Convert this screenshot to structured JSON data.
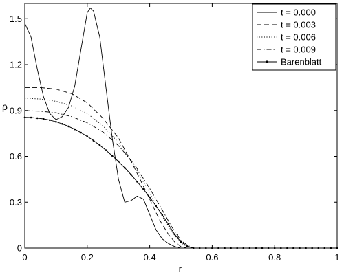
{
  "chart_data": {
    "type": "line",
    "xlabel": "r",
    "ylabel": "ρ",
    "xlim": [
      0,
      1
    ],
    "ylim": [
      0,
      1.6
    ],
    "x_ticks": [
      "0",
      "0.2",
      "0.4",
      "0.6",
      "0.8",
      "1"
    ],
    "y_ticks": [
      "0",
      "0.3",
      "0.6",
      "0.9",
      "1.2",
      "1.5"
    ],
    "grid": false,
    "legend_position": "top-right",
    "series": [
      {
        "name": "t = 0.000",
        "style": "solid",
        "points": [
          [
            0,
            1.47
          ],
          [
            0.02,
            1.38
          ],
          [
            0.04,
            1.17
          ],
          [
            0.06,
            0.99
          ],
          [
            0.08,
            0.88
          ],
          [
            0.1,
            0.84
          ],
          [
            0.12,
            0.86
          ],
          [
            0.14,
            0.92
          ],
          [
            0.16,
            1.06
          ],
          [
            0.18,
            1.3
          ],
          [
            0.2,
            1.54
          ],
          [
            0.21,
            1.57
          ],
          [
            0.22,
            1.55
          ],
          [
            0.24,
            1.38
          ],
          [
            0.26,
            1.05
          ],
          [
            0.28,
            0.72
          ],
          [
            0.3,
            0.45
          ],
          [
            0.32,
            0.3
          ],
          [
            0.34,
            0.31
          ],
          [
            0.36,
            0.34
          ],
          [
            0.38,
            0.32
          ],
          [
            0.4,
            0.22
          ],
          [
            0.42,
            0.12
          ],
          [
            0.44,
            0.06
          ],
          [
            0.46,
            0.03
          ],
          [
            0.48,
            0.01
          ],
          [
            0.5,
            0.0
          ],
          [
            0.55,
            0.0
          ],
          [
            0.6,
            0.0
          ],
          [
            0.8,
            0.0
          ],
          [
            1.0,
            0.0
          ]
        ]
      },
      {
        "name": "t = 0.003",
        "style": "dashed",
        "points": [
          [
            0,
            1.05
          ],
          [
            0.05,
            1.05
          ],
          [
            0.1,
            1.04
          ],
          [
            0.15,
            1.01
          ],
          [
            0.2,
            0.95
          ],
          [
            0.25,
            0.85
          ],
          [
            0.3,
            0.72
          ],
          [
            0.35,
            0.53
          ],
          [
            0.4,
            0.32
          ],
          [
            0.43,
            0.19
          ],
          [
            0.46,
            0.09
          ],
          [
            0.48,
            0.04
          ],
          [
            0.5,
            0.01
          ],
          [
            0.52,
            0.0
          ],
          [
            0.55,
            0.0
          ],
          [
            0.6,
            0.0
          ],
          [
            0.8,
            0.0
          ],
          [
            1.0,
            0.0
          ]
        ]
      },
      {
        "name": "t = 0.006",
        "style": "dotted",
        "points": [
          [
            0,
            0.98
          ],
          [
            0.05,
            0.975
          ],
          [
            0.1,
            0.96
          ],
          [
            0.15,
            0.93
          ],
          [
            0.2,
            0.88
          ],
          [
            0.25,
            0.8
          ],
          [
            0.3,
            0.69
          ],
          [
            0.35,
            0.54
          ],
          [
            0.4,
            0.36
          ],
          [
            0.44,
            0.21
          ],
          [
            0.47,
            0.11
          ],
          [
            0.5,
            0.03
          ],
          [
            0.52,
            0.01
          ],
          [
            0.54,
            0.0
          ],
          [
            0.6,
            0.0
          ],
          [
            0.8,
            0.0
          ],
          [
            1.0,
            0.0
          ]
        ]
      },
      {
        "name": "t = 0.009",
        "style": "dashdot",
        "points": [
          [
            0,
            0.9
          ],
          [
            0.05,
            0.895
          ],
          [
            0.1,
            0.885
          ],
          [
            0.15,
            0.86
          ],
          [
            0.2,
            0.82
          ],
          [
            0.25,
            0.76
          ],
          [
            0.3,
            0.67
          ],
          [
            0.35,
            0.55
          ],
          [
            0.4,
            0.39
          ],
          [
            0.44,
            0.25
          ],
          [
            0.47,
            0.14
          ],
          [
            0.5,
            0.05
          ],
          [
            0.52,
            0.02
          ],
          [
            0.54,
            0.0
          ],
          [
            0.6,
            0.0
          ],
          [
            0.8,
            0.0
          ],
          [
            1.0,
            0.0
          ]
        ]
      },
      {
        "name": "Barenblatt",
        "style": "solid-markers",
        "points": [
          [
            0,
            0.855
          ],
          [
            0.02,
            0.854
          ],
          [
            0.04,
            0.85
          ],
          [
            0.06,
            0.845
          ],
          [
            0.08,
            0.837
          ],
          [
            0.1,
            0.826
          ],
          [
            0.12,
            0.812
          ],
          [
            0.14,
            0.796
          ],
          [
            0.16,
            0.777
          ],
          [
            0.18,
            0.755
          ],
          [
            0.2,
            0.73
          ],
          [
            0.22,
            0.703
          ],
          [
            0.24,
            0.673
          ],
          [
            0.26,
            0.64
          ],
          [
            0.28,
            0.604
          ],
          [
            0.3,
            0.566
          ],
          [
            0.32,
            0.525
          ],
          [
            0.34,
            0.481
          ],
          [
            0.36,
            0.434
          ],
          [
            0.38,
            0.385
          ],
          [
            0.4,
            0.332
          ],
          [
            0.42,
            0.276
          ],
          [
            0.44,
            0.217
          ],
          [
            0.46,
            0.155
          ],
          [
            0.48,
            0.09
          ],
          [
            0.5,
            0.04
          ],
          [
            0.52,
            0.012
          ],
          [
            0.54,
            0.0
          ],
          [
            0.56,
            0.0
          ],
          [
            0.58,
            0.0
          ],
          [
            0.6,
            0.0
          ],
          [
            0.62,
            0.0
          ],
          [
            0.64,
            0.0
          ],
          [
            0.66,
            0.0
          ],
          [
            0.68,
            0.0
          ],
          [
            0.7,
            0.0
          ],
          [
            0.72,
            0.0
          ],
          [
            0.74,
            0.0
          ],
          [
            0.76,
            0.0
          ],
          [
            0.78,
            0.0
          ],
          [
            0.8,
            0.0
          ],
          [
            0.82,
            0.0
          ],
          [
            0.84,
            0.0
          ],
          [
            0.86,
            0.0
          ],
          [
            0.88,
            0.0
          ],
          [
            0.9,
            0.0
          ],
          [
            0.92,
            0.0
          ],
          [
            0.94,
            0.0
          ],
          [
            0.96,
            0.0
          ],
          [
            0.98,
            0.0
          ],
          [
            1.0,
            0.0
          ]
        ]
      }
    ]
  }
}
